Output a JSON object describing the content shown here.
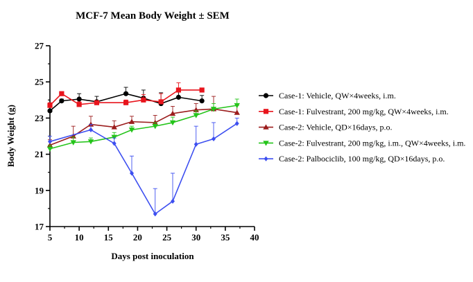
{
  "chart_data": {
    "type": "line",
    "title": "MCF-7 Mean Body Weight ± SEM",
    "xlabel": "Days post inoculation",
    "ylabel": "Body Weight (g)",
    "xlim": [
      5,
      40
    ],
    "ylim": [
      17,
      27
    ],
    "xticks": [
      5,
      10,
      15,
      20,
      25,
      30,
      35,
      40
    ],
    "yticks": [
      17,
      19,
      21,
      23,
      25,
      27
    ],
    "grid": false,
    "legend_position": "right",
    "series": [
      {
        "name": "Case-1: Vehicle, QW×4weeks, i.m.",
        "color": "#000000",
        "marker": "circle",
        "x": [
          5,
          7,
          10,
          13,
          18,
          21,
          24,
          27,
          31
        ],
        "y": [
          23.4,
          23.95,
          24.05,
          23.9,
          24.35,
          24.1,
          23.8,
          24.15,
          23.95
        ],
        "err": [
          0.2,
          0.1,
          0.3,
          0.3,
          0.35,
          0.45,
          0.6,
          0.35,
          0.3
        ]
      },
      {
        "name": "Case-1: Fulvestrant, 200 mg/kg, QW×4weeks, i.m.",
        "color": "#e8141c",
        "marker": "square",
        "x": [
          5,
          7,
          10,
          13,
          18,
          21,
          24,
          27,
          31
        ],
        "y": [
          23.7,
          24.35,
          23.75,
          23.85,
          23.85,
          24.0,
          23.9,
          24.55,
          24.55
        ],
        "err": [
          0.15,
          0.1,
          0.15,
          0.1,
          0.15,
          0.3,
          0.45,
          0.4,
          0.1
        ]
      },
      {
        "name": "Case-2: Vehicle, QD×16days, p.o.",
        "color": "#9b1c1c",
        "marker": "triangle-up",
        "x": [
          5,
          9,
          12,
          16,
          19,
          23,
          26,
          30,
          33,
          37
        ],
        "y": [
          21.5,
          22.0,
          22.65,
          22.5,
          22.8,
          22.75,
          23.25,
          23.45,
          23.5,
          23.3
        ],
        "err": [
          0.3,
          0.55,
          0.45,
          0.35,
          0.3,
          0.4,
          0.4,
          0.35,
          0.7,
          0.4
        ]
      },
      {
        "name": "Case-2: Fulvestrant, 200 mg/kg, i.m., QW×4weeks, i.m.",
        "color": "#24c41a",
        "marker": "triangle-down",
        "x": [
          5,
          9,
          12,
          16,
          19,
          23,
          26,
          30,
          33,
          37
        ],
        "y": [
          21.3,
          21.65,
          21.7,
          21.95,
          22.35,
          22.55,
          22.75,
          23.15,
          23.5,
          23.7
        ],
        "err": [
          0.2,
          0.3,
          0.2,
          0.25,
          0.2,
          0.2,
          0.3,
          0.25,
          0.3,
          0.35
        ]
      },
      {
        "name": "Case-2: Palbociclib, 100 mg/kg, QD×16days, p.o.",
        "color": "#3d4ff0",
        "marker": "diamond",
        "x": [
          5,
          12,
          16,
          19,
          23,
          26,
          30,
          33,
          37
        ],
        "y": [
          21.7,
          22.35,
          21.6,
          19.95,
          17.7,
          18.4,
          21.55,
          21.85,
          22.7
        ],
        "err": [
          0.3,
          0.3,
          0.3,
          0.95,
          1.4,
          1.55,
          1.0,
          0.9,
          0.3
        ]
      }
    ]
  }
}
